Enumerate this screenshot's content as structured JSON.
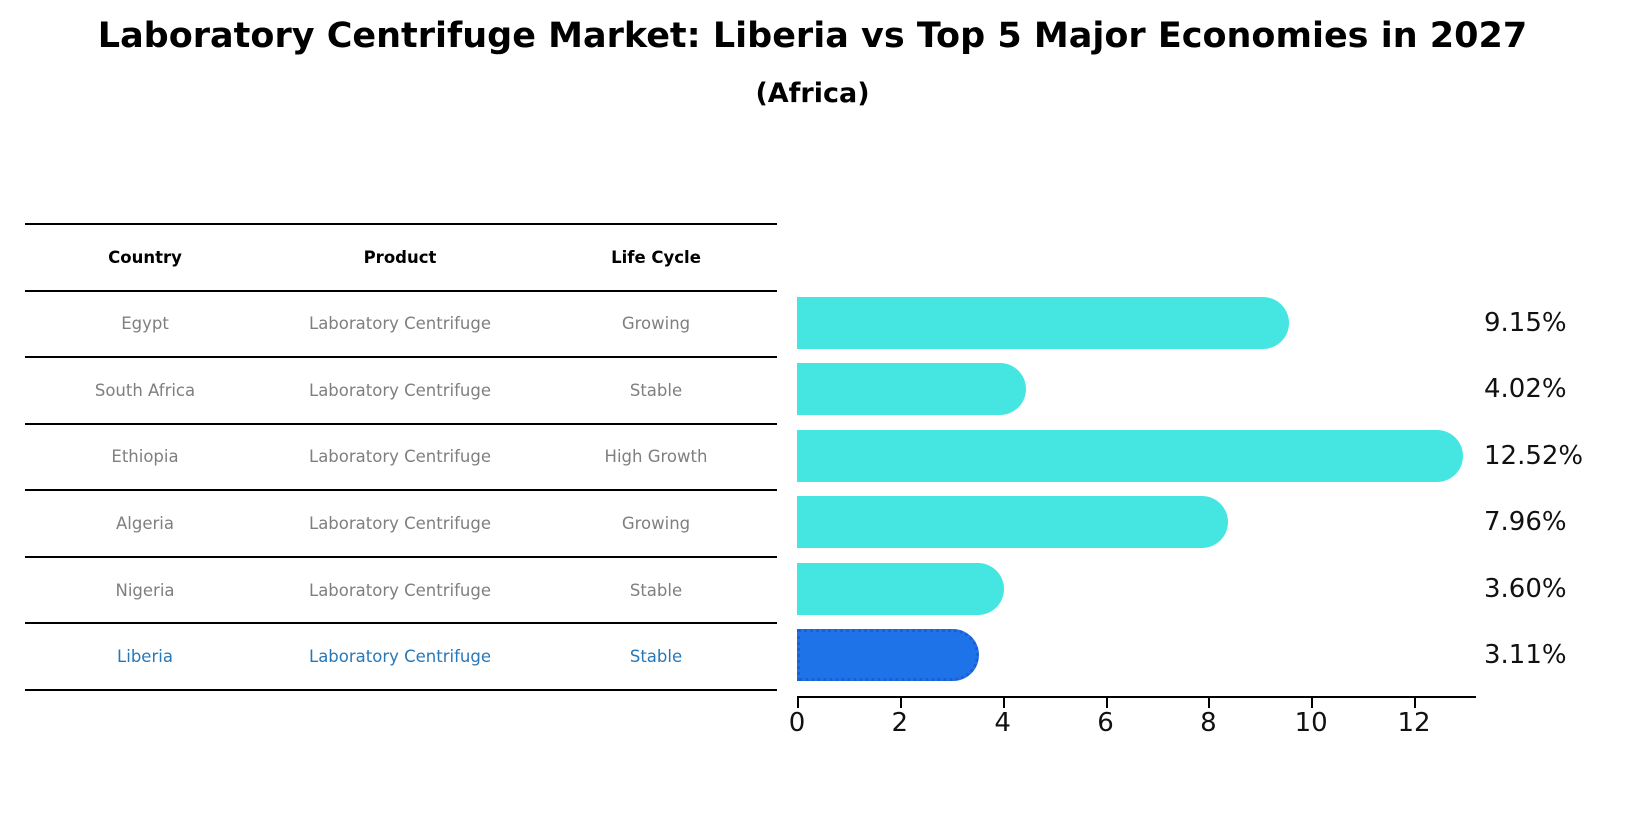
{
  "title": "Laboratory Centrifuge Market: Liberia vs Top 5 Major Economies in 2027",
  "subtitle": "(Africa)",
  "table": {
    "headers": [
      "Country",
      "Product",
      "Life Cycle"
    ],
    "rows": [
      {
        "country": "Egypt",
        "product": "Laboratory Centrifuge",
        "life_cycle": "Growing"
      },
      {
        "country": "South Africa",
        "product": "Laboratory Centrifuge",
        "life_cycle": "Stable"
      },
      {
        "country": "Ethiopia",
        "product": "Laboratory Centrifuge",
        "life_cycle": "High Growth"
      },
      {
        "country": "Algeria",
        "product": "Laboratory Centrifuge",
        "life_cycle": "Growing"
      },
      {
        "country": "Nigeria",
        "product": "Laboratory Centrifuge",
        "life_cycle": "Stable"
      },
      {
        "country": "Liberia",
        "product": "Laboratory Centrifuge",
        "life_cycle": "Stable"
      }
    ]
  },
  "chart_data": {
    "type": "bar",
    "orientation": "horizontal",
    "title": "Laboratory Centrifuge Market: Liberia vs Top 5 Major Economies in 2027 (Africa)",
    "categories": [
      "Egypt",
      "South Africa",
      "Ethiopia",
      "Algeria",
      "Nigeria",
      "Liberia"
    ],
    "values": [
      9.15,
      4.02,
      12.52,
      7.96,
      3.6,
      3.11
    ],
    "value_labels": [
      "9.15%",
      "4.02%",
      "12.52%",
      "7.96%",
      "3.60%",
      "3.11%"
    ],
    "x_ticks": [
      0,
      2,
      4,
      6,
      8,
      10,
      12
    ],
    "xlim": [
      0,
      13.2
    ],
    "grid": false,
    "legend": false,
    "highlight_index": 5,
    "bar_color": "#45e6e2",
    "highlight_color": "#1e73e8"
  },
  "colors": {
    "bar": "#45e6e2",
    "highlight_bar": "#1e73e8",
    "highlight_bar_border": "#1b5fd0",
    "table_text": "#7f7f7f",
    "highlight_text": "#2878b8",
    "axis": "#000000",
    "value_label": "#111111"
  }
}
